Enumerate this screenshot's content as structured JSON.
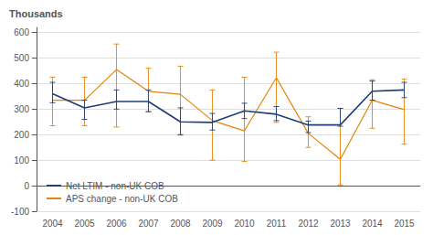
{
  "chart_data": {
    "type": "line",
    "categories": [
      "2004",
      "2005",
      "2006",
      "2007",
      "2008",
      "2009",
      "2010",
      "2011",
      "2012",
      "2013",
      "2014",
      "2015"
    ],
    "series": [
      {
        "name": "Net LTIM - non-UK COB",
        "color": "#1F3D7A",
        "values": [
          360,
          305,
          330,
          330,
          250,
          248,
          293,
          280,
          238,
          238,
          370,
          375
        ],
        "yerr_pos": [
          45,
          30,
          45,
          45,
          55,
          35,
          30,
          30,
          15,
          65,
          40,
          30
        ],
        "yerr_neg": [
          35,
          45,
          30,
          40,
          50,
          30,
          30,
          25,
          30,
          5,
          35,
          30
        ]
      },
      {
        "name": "APS change - non-UK COB",
        "color": "#E8820A",
        "values": [
          335,
          335,
          455,
          370,
          358,
          255,
          215,
          423,
          205,
          103,
          335,
          298
        ],
        "yerr_pos": [
          90,
          90,
          100,
          90,
          110,
          120,
          210,
          100,
          65,
          200,
          80,
          120
        ],
        "yerr_neg": [
          100,
          100,
          225,
          80,
          160,
          155,
          120,
          175,
          55,
          100,
          110,
          135
        ]
      }
    ],
    "ylabel": "Thousands",
    "ylim": [
      -100,
      620
    ],
    "yticks": [
      -100,
      0,
      100,
      200,
      300,
      400,
      500,
      600
    ],
    "grid": true,
    "legend": "lower left"
  }
}
